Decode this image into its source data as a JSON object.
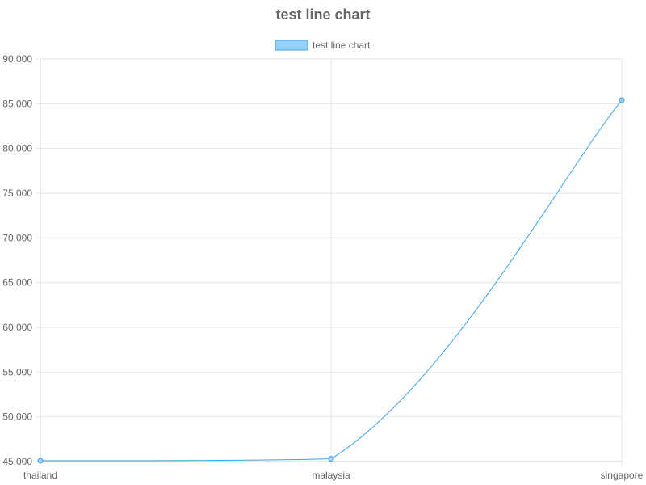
{
  "chart_data": {
    "type": "line",
    "title": "test line chart",
    "categories": [
      "thailand",
      "malaysia",
      "singapore"
    ],
    "series": [
      {
        "name": "test line chart",
        "values": [
          45100,
          45300,
          85400
        ]
      }
    ],
    "ylim": [
      45000,
      90000
    ],
    "yticks": [
      "45,000",
      "50,000",
      "55,000",
      "60,000",
      "65,000",
      "70,000",
      "75,000",
      "80,000",
      "85,000",
      "90,000"
    ],
    "xlabel": "",
    "ylabel": "",
    "grid": true,
    "legend_position": "top",
    "colors": {
      "line": "#36a2eb",
      "fill": "#9ad0f5",
      "grid": "#e6e6e6",
      "axis": "#cccccc",
      "text": "#666666"
    }
  }
}
